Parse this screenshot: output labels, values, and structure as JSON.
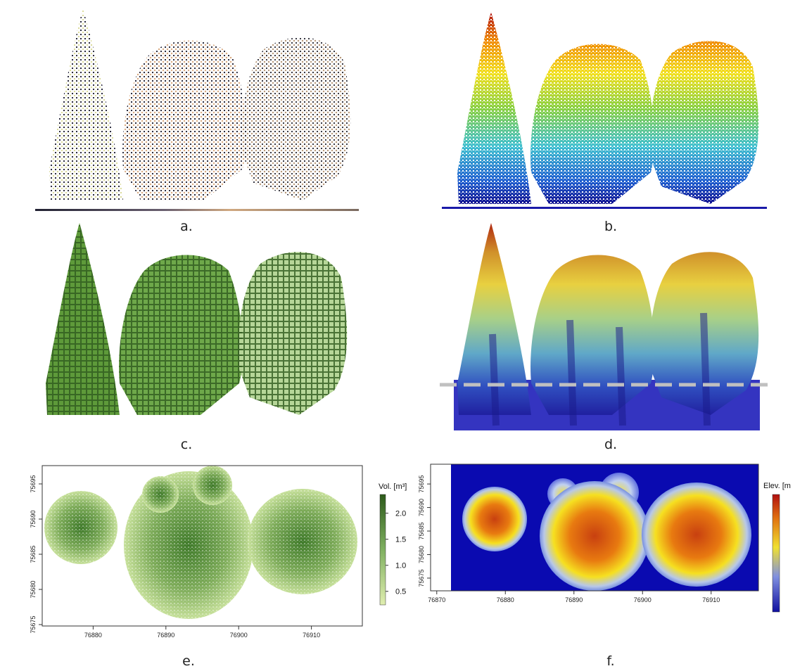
{
  "captions": [
    "a.",
    "b.",
    "c.",
    "d.",
    "e.",
    "f."
  ],
  "map_e": {
    "xlim": [
      76873,
      76917
    ],
    "ylim": [
      75674.8,
      75697.6
    ],
    "xticks": [
      76880,
      76890,
      76900,
      76910
    ],
    "yticks": [
      75675,
      75680,
      75685,
      75690,
      75695
    ],
    "colorbar": {
      "title": "Vol. [m³]",
      "lim": [
        0.24,
        2.36
      ],
      "ticks": [
        0.5,
        {
          "value": 1,
          "label": "1.0"
        },
        1.5,
        {
          "value": 2,
          "label": "2.0"
        }
      ]
    }
  },
  "map_f": {
    "xlim": [
      76869.1,
      76916.9
    ],
    "ylim": [
      75672.3,
      75699.2
    ],
    "xticks": [
      76870,
      76880,
      76890,
      76900,
      76910
    ],
    "yticks": [
      75675,
      75680,
      75685,
      75690,
      75695
    ],
    "colorbar": {
      "title": "Elev. [m"
    }
  }
}
